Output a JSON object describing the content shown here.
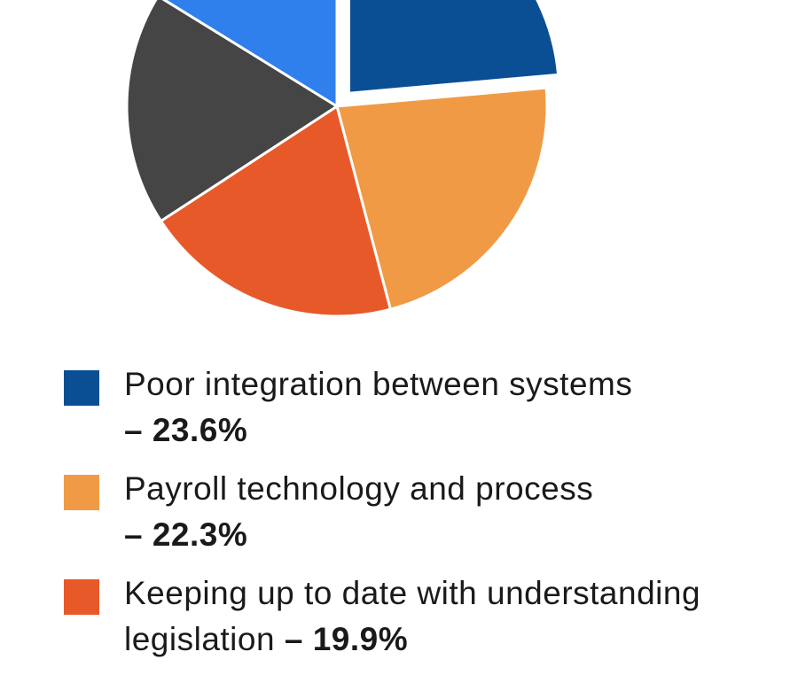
{
  "chart_data": {
    "type": "pie",
    "categories": [
      "Poor integration between systems",
      "Payroll technology and process",
      "Keeping up to date with understanding legislation",
      null,
      null
    ],
    "values": [
      23.6,
      22.3,
      19.9,
      18,
      16.2
    ],
    "value_labels": [
      "– 23.6%",
      "– 22.3%",
      "– 19.9%",
      null,
      null
    ],
    "colors": [
      "#0a4f94",
      "#f09a45",
      "#e8592a",
      "#454545",
      "#2f80ed"
    ]
  }
}
